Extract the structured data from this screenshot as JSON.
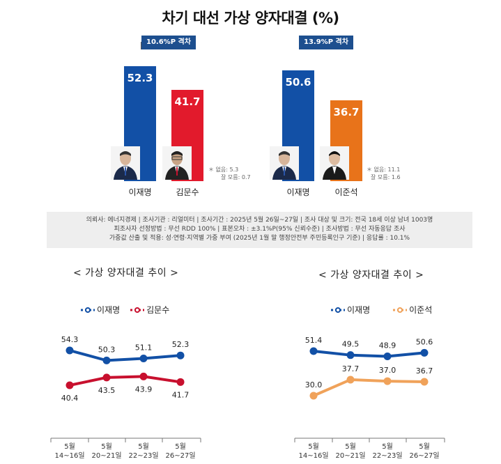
{
  "title": "차기 대선 가상 양자대결 (%)",
  "left_bar": {
    "gap_label": "10.6%P 격차",
    "notes": [
      "＊ 없음: 5.3",
      "잘 모름: 0.7"
    ]
  },
  "right_bar": {
    "gap_label": "13.9%P 격차",
    "notes": [
      "＊ 없음: 11.1",
      "잘 모름: 1.6"
    ]
  },
  "method": {
    "line1": "의뢰사: 에너지경제 | 조사기관 : 리얼미터 | 조사기간 : 2025년 5월 26일~27일 | 조사 대상 및 크기: 전국 18세 이상 남녀 1003명",
    "line2": "피조사자 선정방법 : 무선 RDD 100% | 표본오차 : ±3.1%P(95% 신뢰수준) | 조사방법 : 무선 자동응답 조사",
    "line3": "가중값 산출 및 적용: 성·연령·지역별 가중 부여 (2025년 1월 말 행정안전부 주민등록인구 기준) | 응답률 : 10.1%"
  },
  "left_trend": {
    "title": "< 가상 양자대결 추이 >"
  },
  "right_trend": {
    "title": "< 가상 양자대결 추이 >"
  },
  "colors": {
    "blue": "#1250a6",
    "red": "#c8102e",
    "orange": "#e8731a",
    "light_orange": "#f0a25a",
    "badge": "#1d4f8f"
  },
  "chart_data": [
    {
      "type": "bar",
      "categories": [
        "이재명",
        "김문수"
      ],
      "values": [
        52.3,
        41.7
      ],
      "colors": [
        "#1250a6",
        "#e21a2c"
      ]
    },
    {
      "type": "bar",
      "categories": [
        "이재명",
        "이준석"
      ],
      "values": [
        50.6,
        36.7
      ],
      "colors": [
        "#1250a6",
        "#e8731a"
      ]
    },
    {
      "type": "line",
      "categories": [
        "5월\n14~16일",
        "5월\n20~21일",
        "5월\n22~23일",
        "5월\n26~27일"
      ],
      "series": [
        {
          "name": "이재명",
          "values": [
            54.3,
            50.3,
            51.1,
            52.3
          ],
          "color": "#1250a6"
        },
        {
          "name": "김문수",
          "values": [
            40.4,
            43.5,
            43.9,
            41.7
          ],
          "color": "#c8102e"
        }
      ]
    },
    {
      "type": "line",
      "categories": [
        "5월\n14~16일",
        "5월\n20~21일",
        "5월\n22~23일",
        "5월\n26~27일"
      ],
      "series": [
        {
          "name": "이재명",
          "values": [
            51.4,
            49.5,
            48.9,
            50.6
          ],
          "color": "#1250a6"
        },
        {
          "name": "이준석",
          "values": [
            30.0,
            37.7,
            37.0,
            36.7
          ],
          "color": "#f0a25a"
        }
      ]
    }
  ]
}
